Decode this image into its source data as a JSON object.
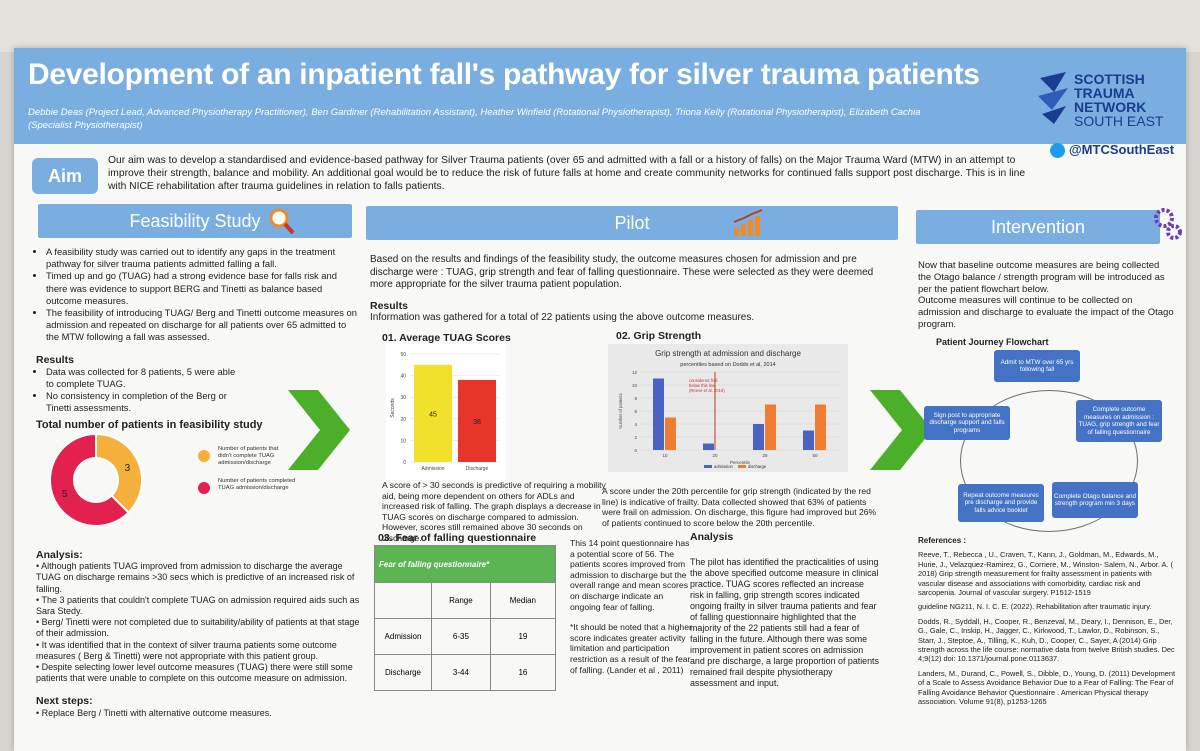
{
  "poster": {
    "title": "Development of an inpatient fall's pathway for silver trauma patients",
    "authors": "Debbie Deas (Project Lead, Advanced Physiotherapy Practitioner), Ben Gardiner (Rehabilitation Assistant), Heather Winfield (Rotational Physiotherapist), Triona Kelly (Rotational Physiotherapist), Elizabeth Cachia (Specialist Physiotherapist)",
    "logo_lines": [
      "SCOTTISH",
      "TRAUMA",
      "NETWORK",
      "SOUTH EAST"
    ],
    "twitter": "@MTCSouthEast",
    "colors": {
      "header": "#7aaee0",
      "arrow": "#4caf2a",
      "bar_admission": "#f2e12a",
      "bar_discharge": "#e8352a"
    }
  },
  "aim": {
    "label": "Aim",
    "text": "Our aim was to develop a standardised and evidence-based pathway for Silver Trauma patients (over 65 and admitted with a fall or a history of falls) on the Major Trauma Ward (MTW) in an attempt to improve their strength, balance and mobility. An additional goal would be to reduce the risk of future falls at home and create community networks for continued falls support post discharge. This is in line with NICE rehabilitation after trauma guidelines in relation to falls patients."
  },
  "feasibility": {
    "heading": "Feasibility Study",
    "bullets": [
      "A feasibility study was carried out to identify any gaps in the treatment pathway for silver trauma patients admitted falling a fall.",
      "Timed up and go (TUAG) had a strong evidence base for falls risk and there was evidence to support BERG and Tinetti as balance based outcome measures.",
      "The feasibility of introducing TUAG/ Berg and Tinetti outcome measures on admission and repeated on discharge for all patients over 65 admitted to the MTW following a fall was assessed."
    ],
    "results_heading": "Results",
    "results": [
      "Data was collected for 8 patients, 5 were able to complete TUAG.",
      "No consistency in completion of the Berg or Tinetti assessments."
    ],
    "chart_title": "Total number of patients in feasibility study",
    "analysis_heading": "Analysis:",
    "analysis": [
      "• Although patients TUAG improved from admission to discharge the average TUAG on discharge remains >30 secs which is predictive of an increased risk of falling.",
      "• The 3 patients that couldn't complete TUAG on admission  required aids such as Sara Stedy.",
      "• Berg/ Tinetti were not completed due to suitability/ability of patients at that stage of their admission.",
      "• It was identified that in the context of silver trauma patients some outcome measures ( Berg & Tinetti) were not appropriate with this patient group.",
      "• Despite selecting lower level outcome measures (TUAG) there were still some patients that were unable to complete on this outcome measure on admission."
    ],
    "next_heading": "Next steps:",
    "next": "• Replace  Berg / Tinetti with alternative outcome measures."
  },
  "pilot": {
    "heading": "Pilot",
    "intro": "Based on the results and findings of the feasibility study, the outcome measures chosen for admission and pre discharge were : TUAG, grip strength and fear of falling questionnaire. These were selected as they were deemed more appropriate for the silver trauma patient population.",
    "results_heading": "Results",
    "results_text": "Information was gathered for a total of 22 patients using the above outcome measures.",
    "tuag_heading": "01. Average TUAG Scores",
    "tuag_caption": "A score of > 30 seconds is predictive of requiring a mobility aid, being more dependent on others for ADLs and increased risk of falling. The graph displays a decrease in TUAG scores on discharge compared to admission. However, scores still remained above 30 seconds on discharge.",
    "grip_heading": "02. Grip Strength",
    "grip_caption": "A score under the 20th percentile for grip strength (indicated by the red line) is  indicative of frailty. Data collected showed that 63% of patients were frail on admission. On discharge, this figure had improved but 26% of patients continued to score below the 20th percentile.",
    "fof_heading": "03. Fear of falling questionnaire",
    "fof_table": {
      "header": "Fear of falling questionnaire*",
      "col_range": "Range",
      "col_median": "Median",
      "rows": [
        {
          "label": "Admission",
          "range": "6-35",
          "median": "19"
        },
        {
          "label": "Discharge",
          "range": "3-44",
          "median": "16"
        }
      ]
    },
    "fof_text": "This 14 point questionnaire has a potential score of 56. The patients scores improved from admission to discharge but the overall range and mean scores on discharge indicate an ongoing fear of falling.",
    "fof_note": "*It should be noted that a higher score indicates greater activity limitation and participation restriction as a result of the fear of falling. (Lander et al , 2011)",
    "analysis_heading": "Analysis",
    "analysis_text": "The pilot has identified the practicalities of using the above specified outcome measure in clinical practice. TUAG scores reflected an increase risk in falling, grip strength scores indicated ongoing frailty in silver trauma patients and fear of falling questionnaire highlighted that the majority of the 22 patients still had a fear of falling in the future. Although there was some improvement in patient scores on admission and pre discharge, a large proportion of patients remained frail despite physiotherapy assessment and input."
  },
  "intervention": {
    "heading": "Intervention",
    "text1": "Now that baseline outcome measures are being collected the Otago balance / strength program will be introduced as per the patient flowchart below.",
    "text2": "Outcome measures will continue to be collected on admission and discharge to evaluate the impact of the Otago program.",
    "flow_title": "Patient Journey Flowchart",
    "flow_steps": [
      "Admit to MTW over 65 yrs following fall",
      "Complete outcome measures on admission : TUAG, grip strength and fear of falling questionnaire",
      "Complete Otago balance and strength program min 3 days",
      "Repeat outcome measures pre discharge and provide falls advice booklet",
      "Sign post to appropriate discharge support and falls programs"
    ],
    "references_heading": "References :",
    "references": [
      "Reeve, T., Rebecca , U., Craven, T., Kann, J., Goldman, M., Edwards, M., Hurie, J., Velazquez-Ramirez, G., Corriere, M., Winston- Salem, N., Arbor. A. ( 2018) Grip strength measurement for frailty assessment in patients with vascular disease and associations with comorbidity, cardiac risk and sarcopenia. Journal of vascular surgery. P1512-1519",
      "guideline NG211, N. I. C. E. (2022). Rehabilitation after traumatic injury.",
      "Dodds, R., Syddall, H., Cooper, R., Benzeval, M., Deary, I., Dennison, E., Der, G., Gale, C., Inskip, H., Jagger, C., Kirkwood, T., Lawlor, D., Robinson, S., Starr, J., Steptoe, A., Tilling, K., Kuh, D., Cooper, C., Sayer, A (2014) Grip strength across the life course: normative data from twelve British studies. Dec 4;9(12) doi: 10.1371/journal.pone.0113637.",
      "Landers, M., Durand, C., Powell, S., Dibble, D., Young, D. (2011) Development of a Scale to Assess Avoidance Behavior Due to a Fear of Falling: The Fear of Falling Avoidance Behavior Questionnaire . American Physical therapy association. Volume 91(8), p1253-1265"
    ]
  },
  "chart_data": [
    {
      "type": "pie",
      "title": "Total number of patients in feasibility study",
      "labels": [
        "Number of patients that didn't complete TUAG admission/discharge",
        "Number of patients completed TUAG admission/discharge"
      ],
      "values": [
        3,
        5
      ],
      "colors": [
        "#f4b03a",
        "#e3214f"
      ]
    },
    {
      "type": "bar",
      "title": "",
      "categories": [
        "Admission",
        "Discharge"
      ],
      "values": [
        45,
        38
      ],
      "ylabel": "Seconds",
      "ylim": [
        0,
        50
      ],
      "yticks": [
        0,
        10,
        20,
        30,
        40,
        50
      ],
      "colors": [
        "#f2e12a",
        "#e8352a"
      ]
    },
    {
      "type": "bar",
      "title": "Grip strength at admission and discharge",
      "subtitle": "percentiles based on Dodds et al, 2014",
      "categories": [
        "10",
        "20",
        "25",
        "50"
      ],
      "xlabel": "Percentile",
      "ylabel": "Number of patients",
      "ylim": [
        0,
        12
      ],
      "yticks": [
        0,
        2,
        4,
        6,
        8,
        10,
        12
      ],
      "series": [
        {
          "name": "admission",
          "values": [
            11,
            1,
            4,
            3
          ],
          "color": "#4a63c2"
        },
        {
          "name": "discharge",
          "values": [
            5,
            0,
            7,
            7
          ],
          "color": "#ee7d31"
        }
      ],
      "annotation": "considered frail below this line. (Reeve et al. 2018)"
    }
  ]
}
